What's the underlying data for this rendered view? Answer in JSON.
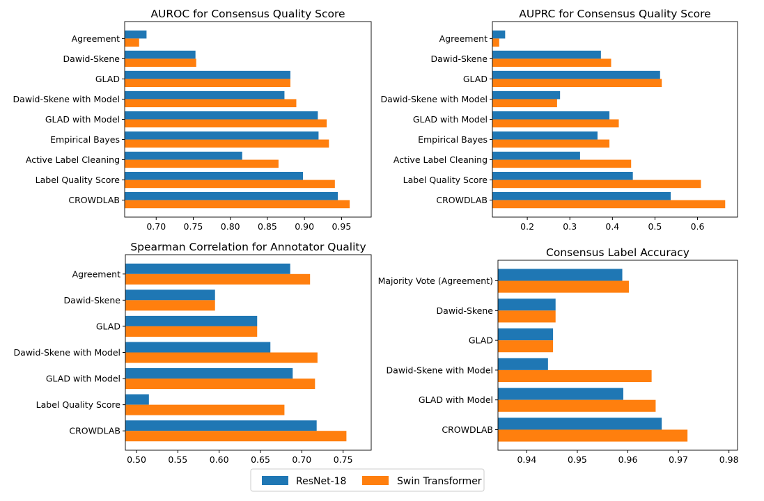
{
  "colors": {
    "ResNet-18": "#1f77b4",
    "Swin Transformer": "#ff7f0e"
  },
  "legend": {
    "items": [
      "ResNet-18",
      "Swin Transformer"
    ],
    "placement": "bottom-center"
  },
  "chart_data": [
    {
      "type": "bar",
      "orientation": "horizontal",
      "title": "AUROC for Consensus Quality Score",
      "categories": [
        "Agreement",
        "Dawid-Skene",
        "GLAD",
        "Dawid-Skene with Model",
        "GLAD with Model",
        "Empirical Bayes",
        "Active Label Cleaning",
        "Label Quality Score",
        "CROWDLAB"
      ],
      "series": [
        {
          "name": "ResNet-18",
          "values": [
            0.687,
            0.753,
            0.881,
            0.873,
            0.918,
            0.919,
            0.816,
            0.898,
            0.945
          ]
        },
        {
          "name": "Swin Transformer",
          "values": [
            0.677,
            0.754,
            0.881,
            0.889,
            0.93,
            0.933,
            0.865,
            0.941,
            0.961
          ]
        }
      ],
      "xlim": [
        0.6575,
        0.99
      ],
      "xticks": [
        "0.70",
        "0.75",
        "0.80",
        "0.85",
        "0.90",
        "0.95"
      ]
    },
    {
      "type": "bar",
      "orientation": "horizontal",
      "title": "AUPRC for Consensus Quality Score",
      "categories": [
        "Agreement",
        "Dawid-Skene",
        "GLAD",
        "Dawid-Skene with Model",
        "GLAD with Model",
        "Empirical Bayes",
        "Active Label Cleaning",
        "Label Quality Score",
        "CROWDLAB"
      ],
      "series": [
        {
          "name": "ResNet-18",
          "values": [
            0.148,
            0.373,
            0.512,
            0.277,
            0.393,
            0.365,
            0.324,
            0.448,
            0.537
          ]
        },
        {
          "name": "Swin Transformer",
          "values": [
            0.134,
            0.397,
            0.516,
            0.27,
            0.415,
            0.393,
            0.444,
            0.608,
            0.665
          ]
        }
      ],
      "xlim": [
        0.118,
        0.694
      ],
      "xticks": [
        "0.2",
        "0.3",
        "0.4",
        "0.5",
        "0.6"
      ]
    },
    {
      "type": "bar",
      "orientation": "horizontal",
      "title": "Spearman Correlation for Annotator Quality",
      "categories": [
        "Agreement",
        "Dawid-Skene",
        "GLAD",
        "Dawid-Skene with Model",
        "GLAD with Model",
        "Label Quality Score",
        "CROWDLAB"
      ],
      "series": [
        {
          "name": "ResNet-18",
          "values": [
            0.686,
            0.595,
            0.646,
            0.662,
            0.689,
            0.515,
            0.718
          ]
        },
        {
          "name": "Swin Transformer",
          "values": [
            0.71,
            0.595,
            0.646,
            0.719,
            0.716,
            0.679,
            0.754
          ]
        }
      ],
      "xlim": [
        0.4865,
        0.784
      ],
      "xticks": [
        "0.50",
        "0.55",
        "0.60",
        "0.65",
        "0.70",
        "0.75"
      ]
    },
    {
      "type": "bar",
      "orientation": "horizontal",
      "title": "Consensus Label Accuracy",
      "categories": [
        "Majority Vote (Agreement)",
        "Dawid-Skene",
        "GLAD",
        "Dawid-Skene with Model",
        "GLAD with Model",
        "CROWDLAB"
      ],
      "series": [
        {
          "name": "ResNet-18",
          "values": [
            0.9589,
            0.9457,
            0.9452,
            0.9442,
            0.9591,
            0.9667
          ]
        },
        {
          "name": "Swin Transformer",
          "values": [
            0.9602,
            0.9457,
            0.9452,
            0.9647,
            0.9655,
            0.9718
          ]
        }
      ],
      "xlim": [
        0.9343,
        0.9817
      ],
      "xticks": [
        "0.94",
        "0.95",
        "0.96",
        "0.97",
        "0.98"
      ]
    }
  ]
}
